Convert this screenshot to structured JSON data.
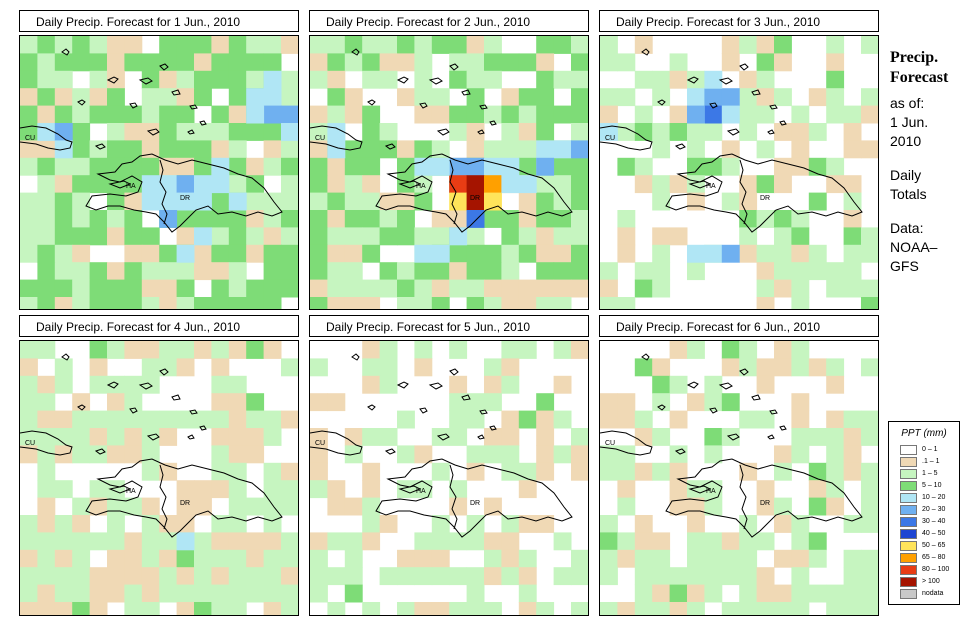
{
  "panels": [
    {
      "title": "Daily Precip. Forecast for  1 Jun., 2010"
    },
    {
      "title": "Daily Precip. Forecast for  2 Jun., 2010"
    },
    {
      "title": "Daily Precip. Forecast for  3 Jun., 2010"
    },
    {
      "title": "Daily Precip. Forecast for  4 Jun., 2010"
    },
    {
      "title": "Daily Precip. Forecast for  5 Jun., 2010"
    },
    {
      "title": "Daily Precip. Forecast for  6 Jun., 2010"
    }
  ],
  "map_labels": {
    "cuba": "CU",
    "haiti": "HA",
    "dr": "DR"
  },
  "side": {
    "title_line1": "Precip.",
    "title_line2": "Forecast",
    "asof_label": "as of:",
    "asof_date_line1": "1 Jun.",
    "asof_date_line2": "2010",
    "totals_line1": "Daily",
    "totals_line2": "Totals",
    "data_label": "Data:",
    "source_line1": "NOAA–",
    "source_line2": "GFS"
  },
  "legend": {
    "title": "PPT (mm)",
    "items": [
      {
        "label": "0 – 1",
        "color": "#ffffff"
      },
      {
        "label": ".1 – 1",
        "color": "#f0d9b5"
      },
      {
        "label": "1 – 5",
        "color": "#c6f5c0"
      },
      {
        "label": "5 – 10",
        "color": "#7edc77"
      },
      {
        "label": "10 – 20",
        "color": "#b0e6f5"
      },
      {
        "label": "20 – 30",
        "color": "#6fb0f0"
      },
      {
        "label": "30 – 40",
        "color": "#3c78e6"
      },
      {
        "label": "40 – 50",
        "color": "#1e46d2"
      },
      {
        "label": "50 – 65",
        "color": "#ffe45a"
      },
      {
        "label": "65 – 80",
        "color": "#ffa000"
      },
      {
        "label": "80 – 100",
        "color": "#e83c14"
      },
      {
        "label": "> 100",
        "color": "#a51400"
      },
      {
        "label": "nodata",
        "color": "#c8c8c8"
      }
    ]
  }
}
